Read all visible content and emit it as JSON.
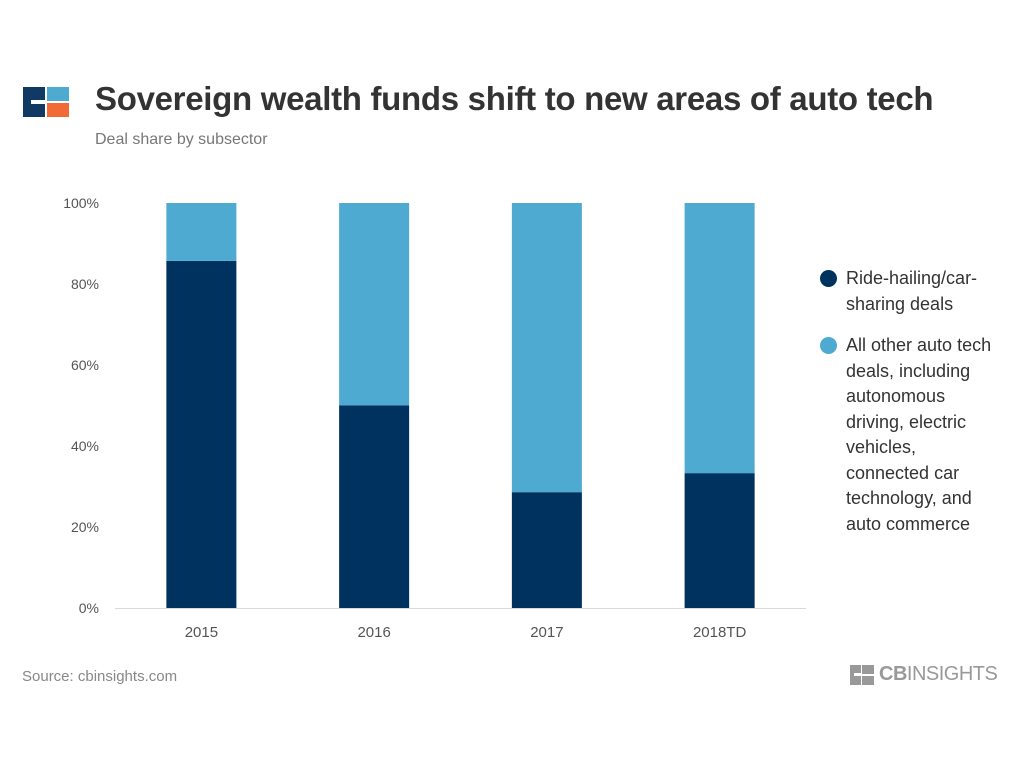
{
  "header": {
    "title": "Sovereign wealth funds shift to new areas of auto tech",
    "subtitle": "Deal share by subsector"
  },
  "colors": {
    "ride_hailing": "#00325f",
    "all_other": "#4eaad0",
    "logo_navy": "#103a64",
    "logo_orange": "#f26a36",
    "logo_blue": "#4eaad0",
    "brand_gray": "#999999"
  },
  "chart_data": {
    "type": "bar",
    "stacked": true,
    "categories": [
      "2015",
      "2016",
      "2017",
      "2018TD"
    ],
    "series": [
      {
        "name": "Ride-hailing/car-sharing deals",
        "values": [
          85.7,
          50.0,
          28.6,
          33.3
        ]
      },
      {
        "name": "All other auto tech deals, including autonomous driving, electric vehicles, connected car technology, and auto commerce",
        "values": [
          14.3,
          50.0,
          71.4,
          66.7
        ]
      }
    ],
    "ylim": [
      0,
      100
    ],
    "yticks": [
      "0%",
      "20%",
      "40%",
      "60%",
      "80%",
      "100%"
    ],
    "xlabel": "",
    "ylabel": "",
    "grid": false,
    "legend_position": "right"
  },
  "footer": {
    "source": "Source: cbinsights.com",
    "brand_bold": "CB",
    "brand_rest": "INSIGHTS"
  }
}
